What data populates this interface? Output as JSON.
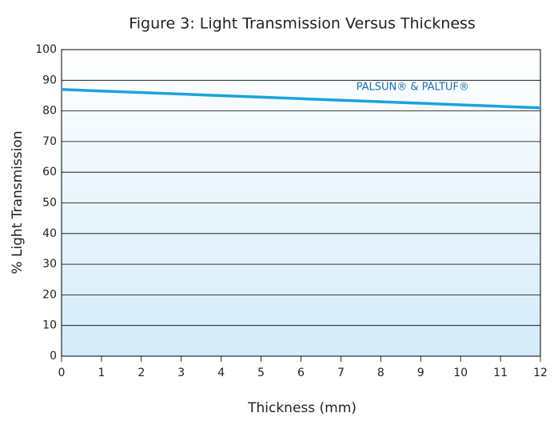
{
  "chart_data": {
    "type": "line",
    "title": "Figure 3: Light Transmission Versus Thickness",
    "x_label": "Thickness (mm)",
    "y_label": "% Light Transmission",
    "x": [
      0,
      1,
      2,
      3,
      4,
      5,
      6,
      7,
      8,
      9,
      10,
      11,
      12
    ],
    "series": [
      {
        "name": "PALSUN® & PALTUF®",
        "color": "#1aa3dc",
        "values": [
          87,
          86.5,
          86,
          85.5,
          85,
          84.5,
          84,
          83.5,
          83,
          82.5,
          82,
          81.5,
          81
        ]
      }
    ],
    "xlim": [
      0,
      12
    ],
    "xticks": [
      0,
      1,
      2,
      3,
      4,
      5,
      6,
      7,
      8,
      9,
      10,
      11,
      12
    ],
    "ylim": [
      0,
      100
    ],
    "yticks": [
      0,
      10,
      20,
      30,
      40,
      50,
      60,
      70,
      80,
      90,
      100
    ],
    "grid": true
  }
}
